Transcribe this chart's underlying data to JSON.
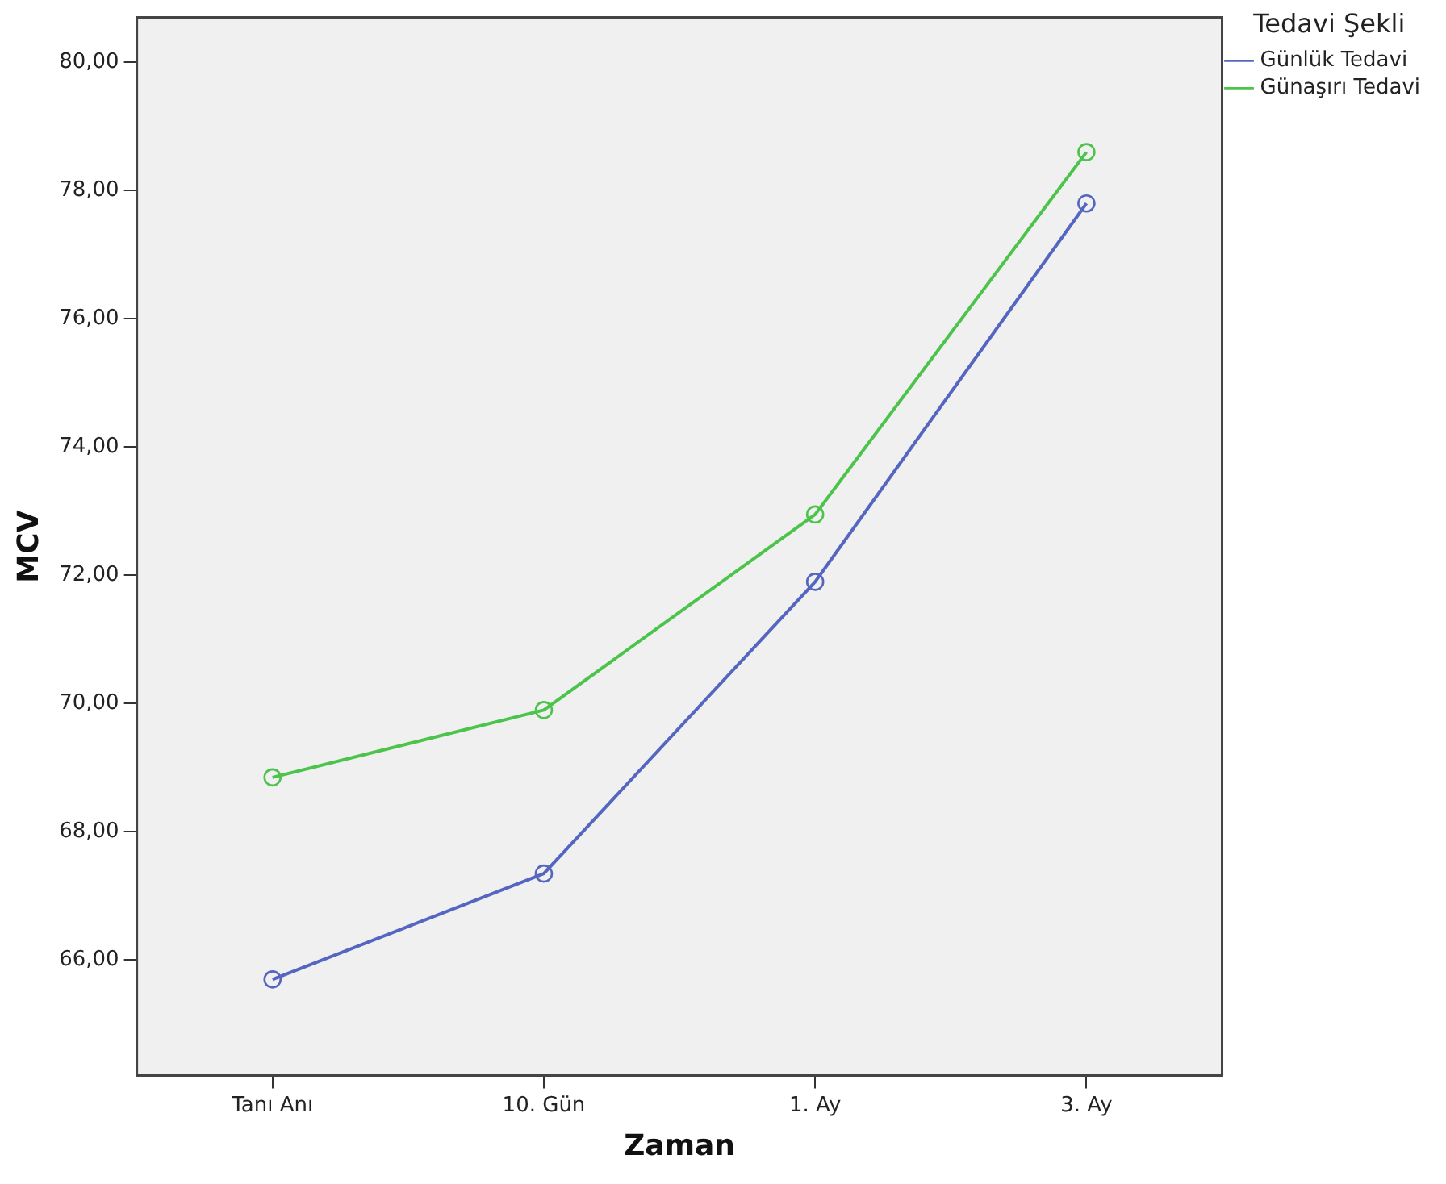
{
  "chart_data": {
    "type": "line",
    "xlabel": "Zaman",
    "ylabel": "MCV",
    "legend_title": "Tedavi Şekli",
    "legend": "top right",
    "marker": "circle",
    "line_style": "solid",
    "grid": false,
    "categories": [
      "Tanı Anı",
      "10. Gün",
      "1. Ay",
      "3. Ay"
    ],
    "ylim": [
      64.2,
      80.7
    ],
    "yticks": [
      {
        "value": 66,
        "label": "66,00"
      },
      {
        "value": 68,
        "label": "68,00"
      },
      {
        "value": 70,
        "label": "70,00"
      },
      {
        "value": 72,
        "label": "72,00"
      },
      {
        "value": 74,
        "label": "74,00"
      },
      {
        "value": 76,
        "label": "76,00"
      },
      {
        "value": 78,
        "label": "78,00"
      },
      {
        "value": 80,
        "label": "80,00"
      }
    ],
    "series": [
      {
        "name": "Günlük Tedavi",
        "color": "#5566c0",
        "values": [
          65.7,
          67.35,
          71.9,
          77.8
        ]
      },
      {
        "name": "Günaşırı Tedavi",
        "color": "#4cc44c",
        "values": [
          68.85,
          69.9,
          72.95,
          78.6
        ]
      }
    ]
  }
}
